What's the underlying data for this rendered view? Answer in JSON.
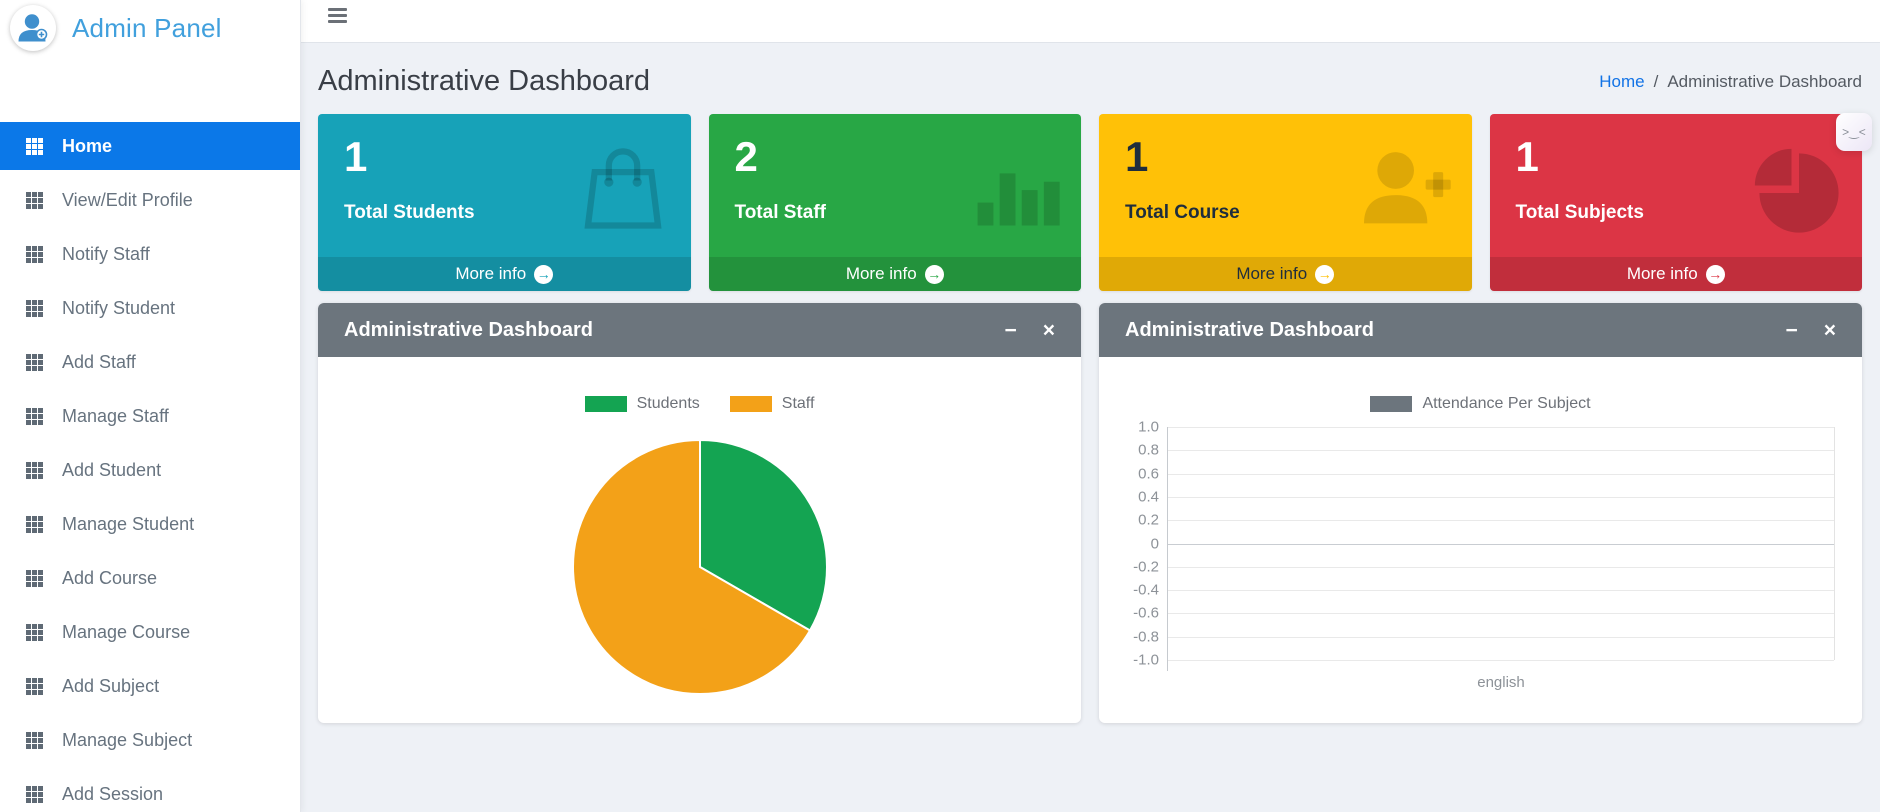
{
  "sidebar": {
    "brand": "Admin Panel",
    "items": [
      {
        "label": "Home",
        "active": true
      },
      {
        "label": "View/Edit Profile",
        "active": false
      },
      {
        "label": "Notify Staff",
        "active": false
      },
      {
        "label": "Notify Student",
        "active": false
      },
      {
        "label": "Add Staff",
        "active": false
      },
      {
        "label": "Manage Staff",
        "active": false
      },
      {
        "label": "Add Student",
        "active": false
      },
      {
        "label": "Manage Student",
        "active": false
      },
      {
        "label": "Add Course",
        "active": false
      },
      {
        "label": "Manage Course",
        "active": false
      },
      {
        "label": "Add Subject",
        "active": false
      },
      {
        "label": "Manage Subject",
        "active": false
      },
      {
        "label": "Add Session",
        "active": false
      }
    ]
  },
  "page": {
    "title": "Administrative Dashboard",
    "breadcrumb": {
      "home": "Home",
      "separator": "/",
      "current": "Administrative Dashboard"
    }
  },
  "labels": {
    "more_info": "More info"
  },
  "icons": {
    "minus": "−",
    "close": "×",
    "arrow_right": "→",
    "devtools_face": ">‿<"
  },
  "colors": {
    "sidebar_active": "#0b78e8",
    "brand_blue": "#41a0dd",
    "panel_header": "#6c757d",
    "content_bg": "#eef1f6",
    "breadcrumb_link": "#1273e6"
  },
  "info_boxes": [
    {
      "value": "1",
      "label": "Total Students",
      "color": "#17a2b8",
      "text_color": "#ffffff",
      "icon": "shopping-bag-icon"
    },
    {
      "value": "2",
      "label": "Total Staff",
      "color": "#28a745",
      "text_color": "#ffffff",
      "icon": "bar-chart-icon"
    },
    {
      "value": "1",
      "label": "Total Course",
      "color": "#ffc107",
      "text_color": "#1f2d3d",
      "icon": "user-plus-icon"
    },
    {
      "value": "1",
      "label": "Total Subjects",
      "color": "#dc3545",
      "text_color": "#ffffff",
      "icon": "pie-chart-icon"
    }
  ],
  "panels": [
    {
      "title": "Administrative Dashboard"
    },
    {
      "title": "Administrative Dashboard"
    }
  ],
  "chart_data": [
    {
      "type": "pie",
      "title": "Administrative Dashboard",
      "legend_position": "top",
      "series": [
        {
          "name": "Students",
          "value": 1,
          "color": "#14a452"
        },
        {
          "name": "Staff",
          "value": 2,
          "color": "#f3a118"
        }
      ],
      "start_angle_deg": 0,
      "note": "green slice begins at 12 o'clock and sweeps clockwise 120deg"
    },
    {
      "type": "bar",
      "title": "Administrative Dashboard",
      "legend_position": "top",
      "categories": [
        "english"
      ],
      "series": [
        {
          "name": "Attendance Per Subject",
          "color": "#6c757d",
          "values": [
            0
          ]
        }
      ],
      "ylim": [
        -1.0,
        1.0
      ],
      "ytick_step": 0.2,
      "yticks": [
        1.0,
        0.8,
        0.6,
        0.4,
        0.2,
        0,
        -0.2,
        -0.4,
        -0.6,
        -0.8,
        -1.0
      ],
      "grid": true
    }
  ]
}
